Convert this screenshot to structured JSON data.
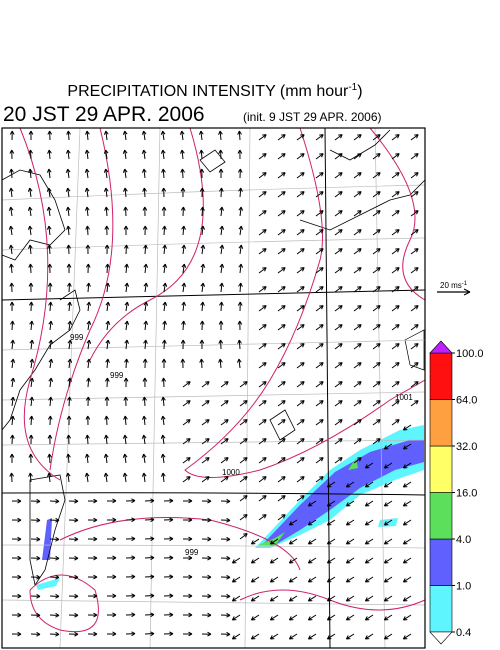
{
  "header": {
    "title_main": "PRECIPITATION INTENSITY (mm hour",
    "title_exponent": "-1",
    "title_close": ")",
    "valid_time": "20 JST 29 APR. 2006",
    "init_time": "(init. 9 JST 29 APR. 2006)"
  },
  "vector_scale": {
    "label": "20 ms",
    "exponent": "-1"
  },
  "map": {
    "contour_labels": [
      "999",
      "1001",
      "1000",
      "999",
      "999"
    ]
  },
  "legend": {
    "levels": [
      {
        "value": 0.4,
        "label": "0.4"
      },
      {
        "value": 1,
        "label": "1.0"
      },
      {
        "value": 4,
        "label": "4.0"
      },
      {
        "value": 16,
        "label": "16.0"
      },
      {
        "value": 32,
        "label": "32.0"
      },
      {
        "value": 64,
        "label": "64.0"
      },
      {
        "value": 100,
        "label": "100.0"
      }
    ],
    "colors": [
      "#5ff5ff",
      "#6060ff",
      "#5ce05c",
      "#ffff66",
      "#ffa040",
      "#ff1010"
    ],
    "under_color": "#ffffff",
    "over_color": "#c020ff"
  }
}
